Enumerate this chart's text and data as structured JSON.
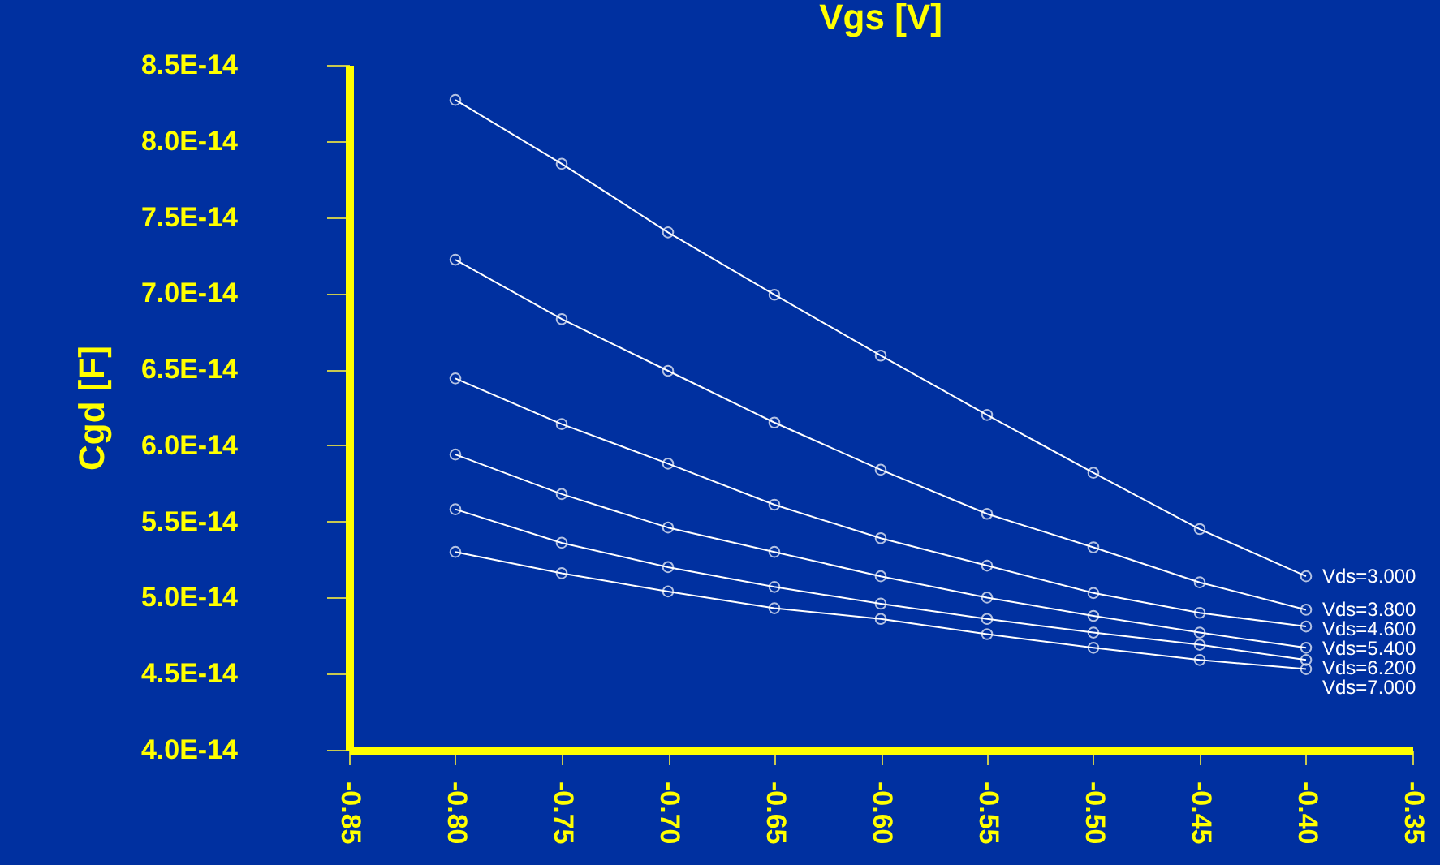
{
  "chart_data": {
    "type": "line",
    "xlabel": "Vgs [V]",
    "ylabel": "Cgd [F]",
    "marker": "circle",
    "grid": false,
    "x": [
      -0.8,
      -0.75,
      -0.7,
      -0.65,
      -0.6,
      -0.55,
      -0.5,
      -0.45,
      -0.4
    ],
    "xlim": [
      -0.85,
      -0.35
    ],
    "xticks": [
      {
        "value": -0.85,
        "label": "-0.85"
      },
      {
        "value": -0.8,
        "label": "-0.80"
      },
      {
        "value": -0.75,
        "label": "-0.75"
      },
      {
        "value": -0.7,
        "label": "-0.70"
      },
      {
        "value": -0.65,
        "label": "-0.65"
      },
      {
        "value": -0.6,
        "label": "-0.60"
      },
      {
        "value": -0.55,
        "label": "-0.55"
      },
      {
        "value": -0.5,
        "label": "-0.50"
      },
      {
        "value": -0.45,
        "label": "-0.45"
      },
      {
        "value": -0.4,
        "label": "-0.40"
      },
      {
        "value": -0.35,
        "label": "-0.35"
      }
    ],
    "ylim": [
      4e-14,
      8.5e-14
    ],
    "yticks": [
      {
        "value": 4e-14,
        "label": "4.0E-14"
      },
      {
        "value": 4.5e-14,
        "label": "4.5E-14"
      },
      {
        "value": 5e-14,
        "label": "5.0E-14"
      },
      {
        "value": 5.5e-14,
        "label": "5.5E-14"
      },
      {
        "value": 6e-14,
        "label": "6.0E-14"
      },
      {
        "value": 6.5e-14,
        "label": "6.5E-14"
      },
      {
        "value": 7e-14,
        "label": "7.0E-14"
      },
      {
        "value": 7.5e-14,
        "label": "7.5E-14"
      },
      {
        "value": 8e-14,
        "label": "8.0E-14"
      },
      {
        "value": 8.5e-14,
        "label": "8.5E-14"
      }
    ],
    "series": [
      {
        "name": "Vds=3.000",
        "color": "#ffffff",
        "values": [
          8.27e-14,
          7.85e-14,
          7.4e-14,
          6.99e-14,
          6.59e-14,
          6.2e-14,
          5.82e-14,
          5.45e-14,
          5.14e-14
        ]
      },
      {
        "name": "Vds=3.800",
        "color": "#ffffff",
        "values": [
          7.22e-14,
          6.83e-14,
          6.49e-14,
          6.15e-14,
          5.84e-14,
          5.55e-14,
          5.33e-14,
          5.1e-14,
          4.92e-14
        ]
      },
      {
        "name": "Vds=4.600",
        "color": "#ffffff",
        "values": [
          6.44e-14,
          6.14e-14,
          5.88e-14,
          5.61e-14,
          5.39e-14,
          5.21e-14,
          5.03e-14,
          4.9e-14,
          4.81e-14
        ]
      },
      {
        "name": "Vds=5.400",
        "color": "#ffffff",
        "values": [
          5.94e-14,
          5.68e-14,
          5.46e-14,
          5.3e-14,
          5.14e-14,
          5e-14,
          4.88e-14,
          4.77e-14,
          4.67e-14
        ]
      },
      {
        "name": "Vds=6.200",
        "color": "#ffffff",
        "values": [
          5.58e-14,
          5.36e-14,
          5.2e-14,
          5.07e-14,
          4.96e-14,
          4.86e-14,
          4.77e-14,
          4.69e-14,
          4.59e-14
        ]
      },
      {
        "name": "Vds=7.000",
        "color": "#ffffff",
        "values": [
          5.3e-14,
          5.16e-14,
          5.04e-14,
          4.93e-14,
          4.86e-14,
          4.76e-14,
          4.67e-14,
          4.59e-14,
          4.53e-14
        ]
      }
    ]
  }
}
